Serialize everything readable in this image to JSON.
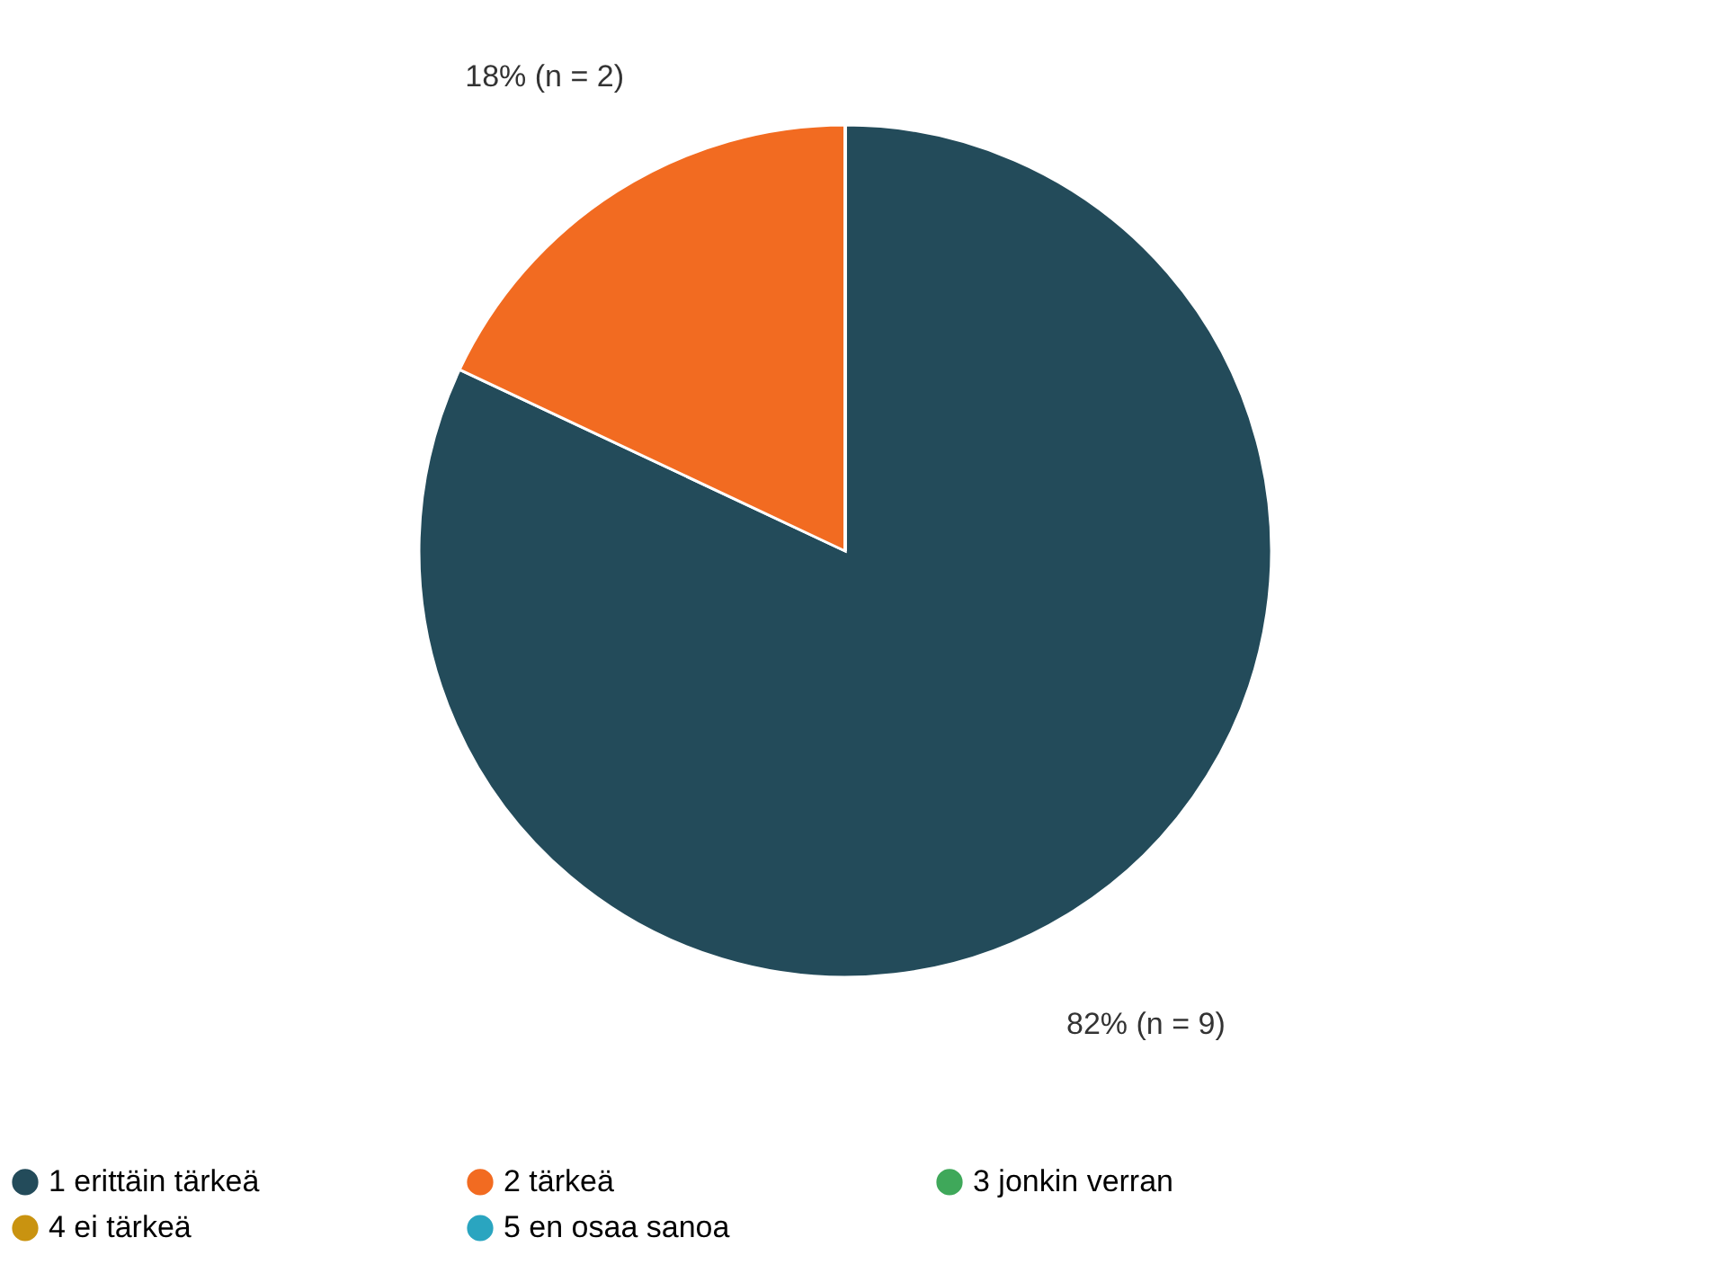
{
  "chart_data": {
    "type": "pie",
    "categories": [
      "1 erittäin tärkeä",
      "2 tärkeä",
      "3 jonkin verran",
      "4 ei tärkeä",
      "5 en osaa sanoa"
    ],
    "values": [
      82,
      18,
      0,
      0,
      0
    ],
    "colors": [
      "#234b5a",
      "#f26b21",
      "#3fa85a",
      "#c99310",
      "#2aa5c0"
    ],
    "value_labels": [
      "82% (n = 9)",
      "18% (n = 2)",
      null,
      null,
      null
    ],
    "legend": "bottom"
  }
}
